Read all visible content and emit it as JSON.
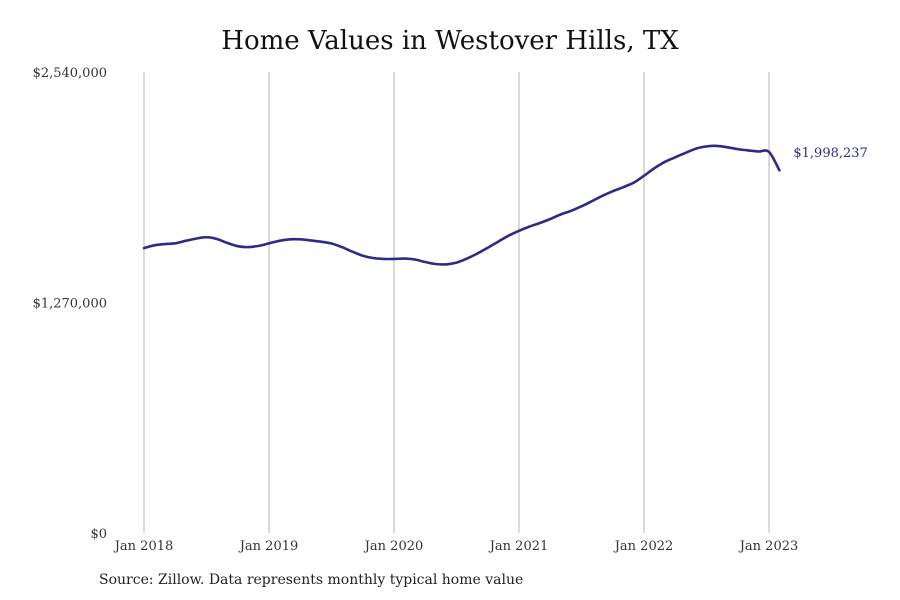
{
  "chart_data": {
    "type": "line",
    "title": "Home Values in Westover Hills, TX",
    "xlabel": "",
    "ylabel": "",
    "y_ticks": [
      "$0",
      "$1,270,000",
      "$2,540,000"
    ],
    "y_tick_values": [
      0,
      1270000,
      2540000
    ],
    "ylim": [
      0,
      2540000
    ],
    "x_ticks": [
      "Jan 2018",
      "Jan 2019",
      "Jan 2020",
      "Jan 2021",
      "Jan 2022",
      "Jan 2023"
    ],
    "x_tick_values": [
      2018,
      2019,
      2020,
      2021,
      2022,
      2023
    ],
    "xlim": [
      2018,
      2023.1
    ],
    "grid": "vertical",
    "line_color": "#2e2a86",
    "grid_color": "#b5b5b5",
    "series": [
      {
        "x": [
          2018.0,
          2018.083,
          2018.167,
          2018.25,
          2018.333,
          2018.417,
          2018.5,
          2018.583,
          2018.667,
          2018.75,
          2018.833,
          2018.917,
          2019.0,
          2019.083,
          2019.167,
          2019.25,
          2019.333,
          2019.417,
          2019.5,
          2019.583,
          2019.667,
          2019.75,
          2019.833,
          2019.917,
          2020.0,
          2020.083,
          2020.167,
          2020.25,
          2020.333,
          2020.417,
          2020.5,
          2020.583,
          2020.667,
          2020.75,
          2020.833,
          2020.917,
          2021.0,
          2021.083,
          2021.167,
          2021.25,
          2021.333,
          2021.417,
          2021.5,
          2021.583,
          2021.667,
          2021.75,
          2021.833,
          2021.917,
          2022.0,
          2022.083,
          2022.167,
          2022.25,
          2022.333,
          2022.417,
          2022.5,
          2022.583,
          2022.667,
          2022.75,
          2022.833,
          2022.917,
          2023.0,
          2023.083
        ],
        "values": [
          1570000,
          1585000,
          1592000,
          1596000,
          1610000,
          1622000,
          1630000,
          1620000,
          1598000,
          1580000,
          1575000,
          1582000,
          1596000,
          1610000,
          1618000,
          1618000,
          1612000,
          1605000,
          1595000,
          1575000,
          1550000,
          1528000,
          1515000,
          1510000,
          1510000,
          1512000,
          1507000,
          1493000,
          1482000,
          1480000,
          1490000,
          1512000,
          1540000,
          1572000,
          1605000,
          1638000,
          1665000,
          1688000,
          1708000,
          1730000,
          1755000,
          1775000,
          1800000,
          1828000,
          1858000,
          1883000,
          1905000,
          1930000,
          1968000,
          2010000,
          2045000,
          2070000,
          2095000,
          2118000,
          2130000,
          2133000,
          2125000,
          2115000,
          2108000,
          2102000,
          2100000,
          1998237
        ]
      }
    ],
    "end_label": "$1,998,237"
  },
  "source": "Source: Zillow. Data represents monthly typical home value"
}
